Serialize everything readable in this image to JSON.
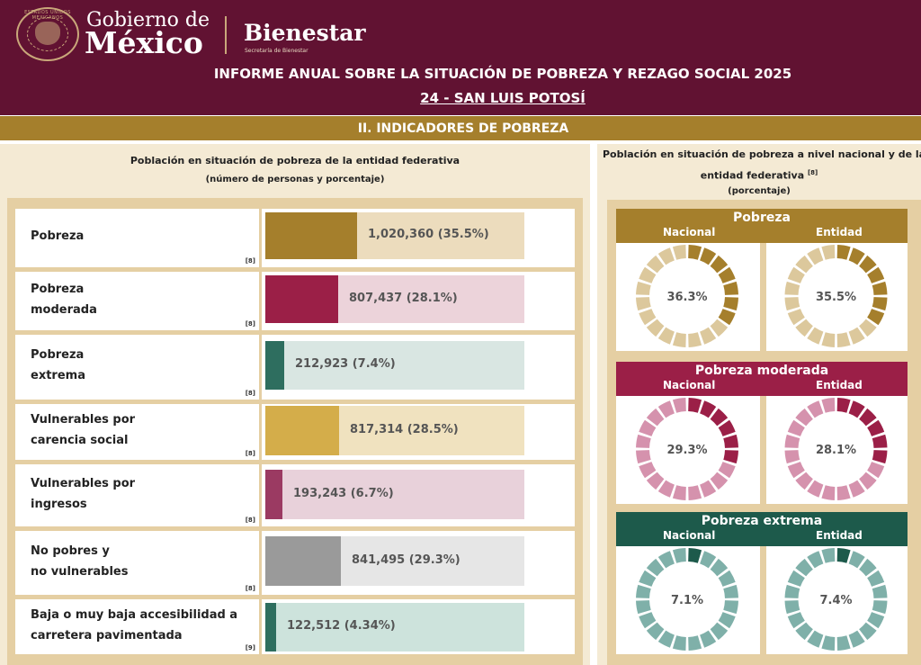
{
  "header": {
    "gobierno_line1": "Gobierno de",
    "gobierno_line2": "México",
    "seal_text": "ESTADOS UNIDOS MEXICANOS",
    "bienestar": "Bienestar",
    "bienestar_sub": "Secretaría de Bienestar",
    "title": "INFORME ANUAL SOBRE LA SITUACIÓN DE POBREZA Y REZAGO SOCIAL 2025",
    "subtitle": "24 - SAN LUIS POTOSÍ"
  },
  "section_title": "II. INDICADORES DE POBREZA",
  "left_panel": {
    "title": "Población en situación de pobreza de la entidad federativa",
    "subtitle": "(número de personas y porcentaje)",
    "rows": [
      {
        "line1": "Pobreza",
        "line2": "",
        "note": "[8]",
        "value_text": "1,020,360 (35.5%)",
        "share": 0.355,
        "fill": "#a57f2c",
        "bg": "#ecdcbd"
      },
      {
        "line1": "Pobreza",
        "line2": "moderada",
        "note": "[8]",
        "value_text": "807,437 (28.1%)",
        "share": 0.281,
        "fill": "#9b1f47",
        "bg": "#ecd3da"
      },
      {
        "line1": "Pobreza",
        "line2": "extrema",
        "note": "[8]",
        "value_text": "212,923 (7.4%)",
        "share": 0.074,
        "fill": "#2e6e5f",
        "bg": "#d9e6e2"
      },
      {
        "line1": "Vulnerables por",
        "line2": "carencia social",
        "note": "[8]",
        "value_text": "817,314 (28.5%)",
        "share": 0.285,
        "fill": "#d4ad4a",
        "bg": "#f0e2bf"
      },
      {
        "line1": "Vulnerables por",
        "line2": "ingresos",
        "note": "[8]",
        "value_text": "193,243 (6.7%)",
        "share": 0.067,
        "fill": "#9b3a62",
        "bg": "#e8d1da"
      },
      {
        "line1": "No pobres y",
        "line2": "no vulnerables",
        "note": "[8]",
        "value_text": "841,495 (29.3%)",
        "share": 0.293,
        "fill": "#9a9a9a",
        "bg": "#e6e6e6"
      },
      {
        "line1": "Baja o muy baja accesibilidad a",
        "line2": "carretera pavimentada",
        "note": "[9]",
        "value_text": "122,512 (4.34%)",
        "share": 0.0434,
        "fill": "#2e6e5f",
        "bg": "#cde3dc"
      }
    ]
  },
  "right_panel": {
    "title_line1": "Población en situación de pobreza a nivel nacional y de la",
    "title_line2": "entidad federativa",
    "title_note": "[8]",
    "subtitle": "(porcentaje)",
    "nacional_label": "Nacional",
    "entidad_label": "Entidad",
    "groups": [
      {
        "name": "Pobreza",
        "color": "#a57f2c",
        "light": "#dcc89c",
        "nacional_text": "36.3%",
        "nacional": 36.3,
        "entidad_text": "35.5%",
        "entidad": 35.5
      },
      {
        "name": "Pobreza moderada",
        "color": "#9b1f47",
        "light": "#d592ad",
        "nacional_text": "29.3%",
        "nacional": 29.3,
        "entidad_text": "28.1%",
        "entidad": 28.1
      },
      {
        "name": "Pobreza extrema",
        "color": "#1d5a4b",
        "light": "#7fb0a9",
        "nacional_text": "7.1%",
        "nacional": 7.1,
        "entidad_text": "7.4%",
        "entidad": 7.4
      }
    ]
  }
}
